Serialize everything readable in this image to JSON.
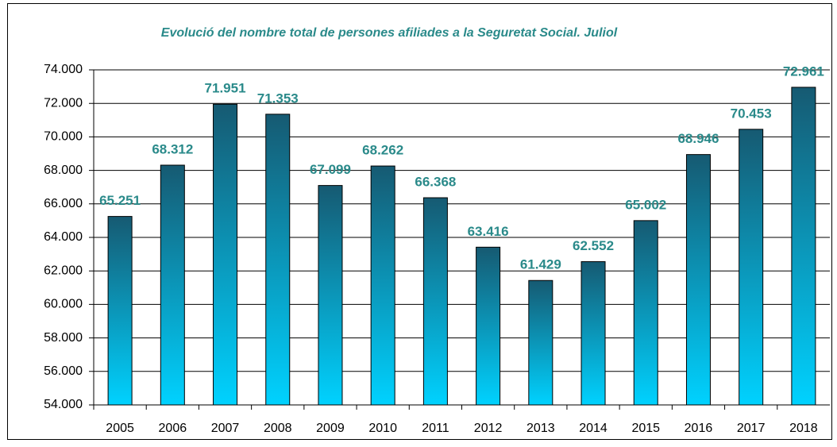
{
  "chart_data": {
    "type": "bar",
    "title": "Evolució del nombre total de persones afiliades a la Seguretat Social. Juliol",
    "categories": [
      "2005",
      "2006",
      "2007",
      "2008",
      "2009",
      "2010",
      "2011",
      "2012",
      "2013",
      "2014",
      "2015",
      "2016",
      "2017",
      "2018"
    ],
    "values": [
      65251,
      68312,
      71951,
      71353,
      67099,
      68262,
      66368,
      63416,
      61429,
      62552,
      65002,
      68946,
      70453,
      72961
    ],
    "value_labels": [
      "65.251",
      "68.312",
      "71.951",
      "71.353",
      "67.099",
      "68.262",
      "66.368",
      "63.416",
      "61.429",
      "62.552",
      "65.002",
      "68.946",
      "70.453",
      "72.961"
    ],
    "gradient": [
      "#165a72",
      "#00d2ff"
    ],
    "label_color": "#2a8a8a",
    "ylim": [
      54000,
      74000
    ],
    "yticks": [
      {
        "value": 54000,
        "label": "54.000"
      },
      {
        "value": 56000,
        "label": "56.000"
      },
      {
        "value": 58000,
        "label": "58.000"
      },
      {
        "value": 60000,
        "label": "60.000"
      },
      {
        "value": 62000,
        "label": "62.000"
      },
      {
        "value": 64000,
        "label": "64.000"
      },
      {
        "value": 66000,
        "label": "66.000"
      },
      {
        "value": 68000,
        "label": "68.000"
      },
      {
        "value": 70000,
        "label": "70.000"
      },
      {
        "value": 72000,
        "label": "72.000"
      },
      {
        "value": 74000,
        "label": "74.000"
      }
    ],
    "grid": true
  }
}
